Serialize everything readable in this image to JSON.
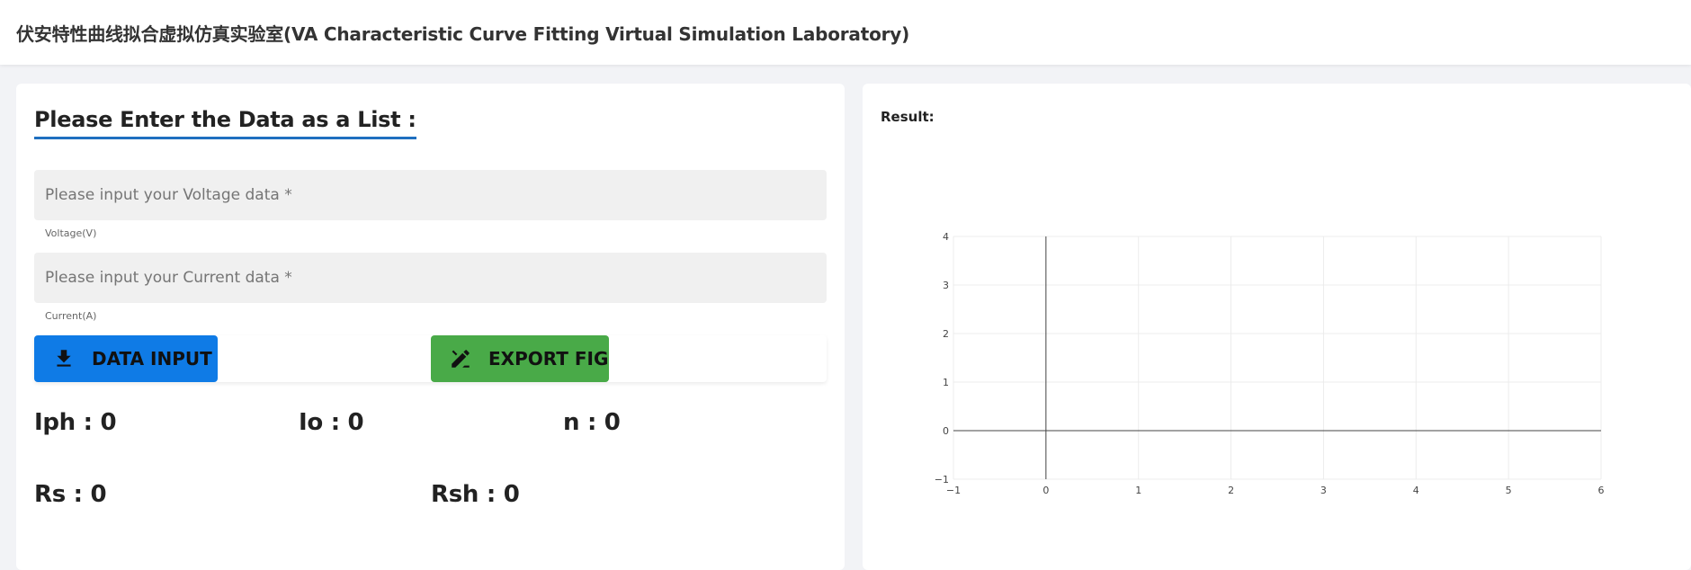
{
  "header": {
    "title": "伏安特性曲线拟合虚拟仿真实验室(VA Characteristic Curve Fitting Virtual Simulation Laboratory)"
  },
  "form": {
    "heading": "Please Enter the Data as a List :",
    "voltage": {
      "placeholder": "Please input your Voltage data *",
      "value": "",
      "helper": "Voltage(V)"
    },
    "current": {
      "placeholder": "Please input your Current data *",
      "value": "",
      "helper": "Current(A)"
    },
    "buttons": {
      "data_input": {
        "label": "DATA INPUT",
        "icon": "download-icon",
        "color": "#0f7be6"
      },
      "export_fig": {
        "label": "EXPORT FIG",
        "icon": "edit-pen-icon",
        "color": "#49aa48"
      }
    }
  },
  "params": {
    "iph": "Iph : 0",
    "io": "Io : 0",
    "n": "n : 0",
    "rs": "Rs : 0",
    "rsh": "Rsh : 0"
  },
  "result": {
    "label": "Result:"
  },
  "chart_data": {
    "type": "scatter",
    "x": [],
    "y": [],
    "xlim": [
      -1,
      6
    ],
    "ylim": [
      -1,
      4
    ],
    "xticks": [
      -1,
      0,
      1,
      2,
      3,
      4,
      5,
      6
    ],
    "yticks": [
      -1,
      0,
      1,
      2,
      3,
      4
    ],
    "grid": true
  }
}
